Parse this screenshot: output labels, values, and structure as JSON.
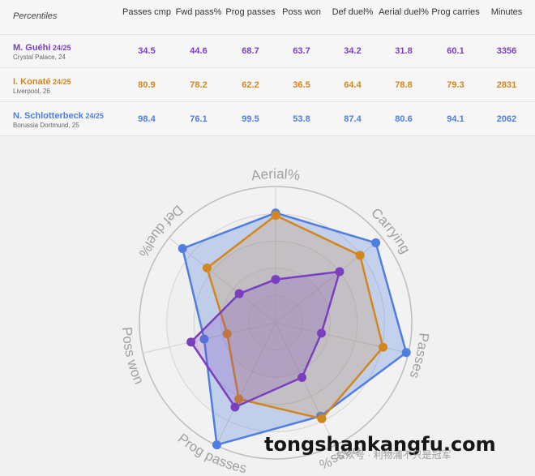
{
  "table": {
    "corner_label": "Percentiles",
    "columns": [
      "Passes cmp",
      "Fwd pass%",
      "Prog passes",
      "Poss won",
      "Def duel%",
      "Aerial duel%",
      "Prog carries",
      "Minutes"
    ],
    "rows": [
      {
        "name": "M. Guéhi",
        "season": "24/25",
        "sub": "Crystal Palace, 24",
        "color": "#7a3fbf",
        "values": [
          "34.5",
          "44.6",
          "68.7",
          "63.7",
          "34.2",
          "31.8",
          "60.1",
          "3356"
        ]
      },
      {
        "name": "I. Konaté",
        "season": "24/25",
        "sub": "Liverpool, 26",
        "color": "#d2861e",
        "values": [
          "80.9",
          "78.2",
          "62.2",
          "36.5",
          "64.4",
          "78.8",
          "79.3",
          "2831"
        ]
      },
      {
        "name": "N. Schlotterbeck",
        "season": "24/25",
        "sub": "Borussia Dortmund, 25",
        "color": "#4f7ee0",
        "values": [
          "98.4",
          "76.1",
          "99.5",
          "53.8",
          "87.4",
          "80.6",
          "94.1",
          "2062"
        ]
      }
    ]
  },
  "chart_data": {
    "type": "radar",
    "axes": [
      "Aerial%",
      "Carrying",
      "Passes",
      "Pass%",
      "Prog passes",
      "Poss won",
      "Def duel%"
    ],
    "range": [
      0,
      100
    ],
    "series": [
      {
        "name": "N. Schlotterbeck",
        "color": "#4f7ee0",
        "values": [
          80.6,
          94.1,
          98.4,
          76.1,
          99.5,
          53.8,
          87.4
        ]
      },
      {
        "name": "I. Konaté",
        "color": "#d2861e",
        "values": [
          78.8,
          79.3,
          80.9,
          78.2,
          62.2,
          36.5,
          64.4
        ]
      },
      {
        "name": "M. Guéhi",
        "color": "#7a3fbf",
        "values": [
          31.8,
          60.1,
          34.5,
          44.6,
          68.7,
          63.7,
          34.2
        ]
      }
    ]
  },
  "watermark": {
    "main": "tongshankangfu.com",
    "sub": "公众号 · 利物浦不只是冠军"
  }
}
